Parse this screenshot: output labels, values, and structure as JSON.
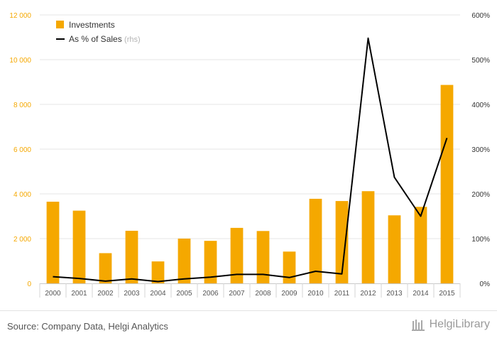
{
  "chart_data": {
    "type": "bar",
    "categories": [
      "2000",
      "2001",
      "2002",
      "2003",
      "2004",
      "2005",
      "2006",
      "2007",
      "2008",
      "2009",
      "2010",
      "2011",
      "2012",
      "2013",
      "2014",
      "2015"
    ],
    "series": [
      {
        "name": "Investments",
        "type": "bar",
        "axis": "left",
        "values": [
          3650,
          3250,
          1350,
          2350,
          980,
          2000,
          1900,
          2480,
          2340,
          1420,
          3780,
          3680,
          4120,
          3040,
          3420,
          8870
        ],
        "color": "#F5A800"
      },
      {
        "name": "As % of Sales",
        "type": "line",
        "axis": "right",
        "values": [
          15,
          11,
          5,
          10,
          4,
          10,
          14,
          20,
          20,
          13,
          27,
          21,
          548,
          237,
          150,
          325
        ],
        "color": "#000000"
      }
    ],
    "legend": {
      "position": "top-left",
      "rhs_note": "(rhs)"
    },
    "y_left": {
      "ylim": [
        0,
        12000
      ],
      "ticks": [
        "0",
        "2 000",
        "4 000",
        "6 000",
        "8 000",
        "10 000",
        "12 000"
      ],
      "tick_values": [
        0,
        2000,
        4000,
        6000,
        8000,
        10000,
        12000
      ],
      "color": "#F5A800"
    },
    "y_right": {
      "ylim": [
        0,
        600
      ],
      "ticks": [
        "0%",
        "100%",
        "200%",
        "300%",
        "400%",
        "500%",
        "600%"
      ],
      "tick_values": [
        0,
        100,
        200,
        300,
        400,
        500,
        600
      ]
    },
    "grid": true
  },
  "footer": {
    "source": "Source: Company Data, Helgi Analytics",
    "brand_part1": "Helgi",
    "brand_part2": "Library"
  }
}
